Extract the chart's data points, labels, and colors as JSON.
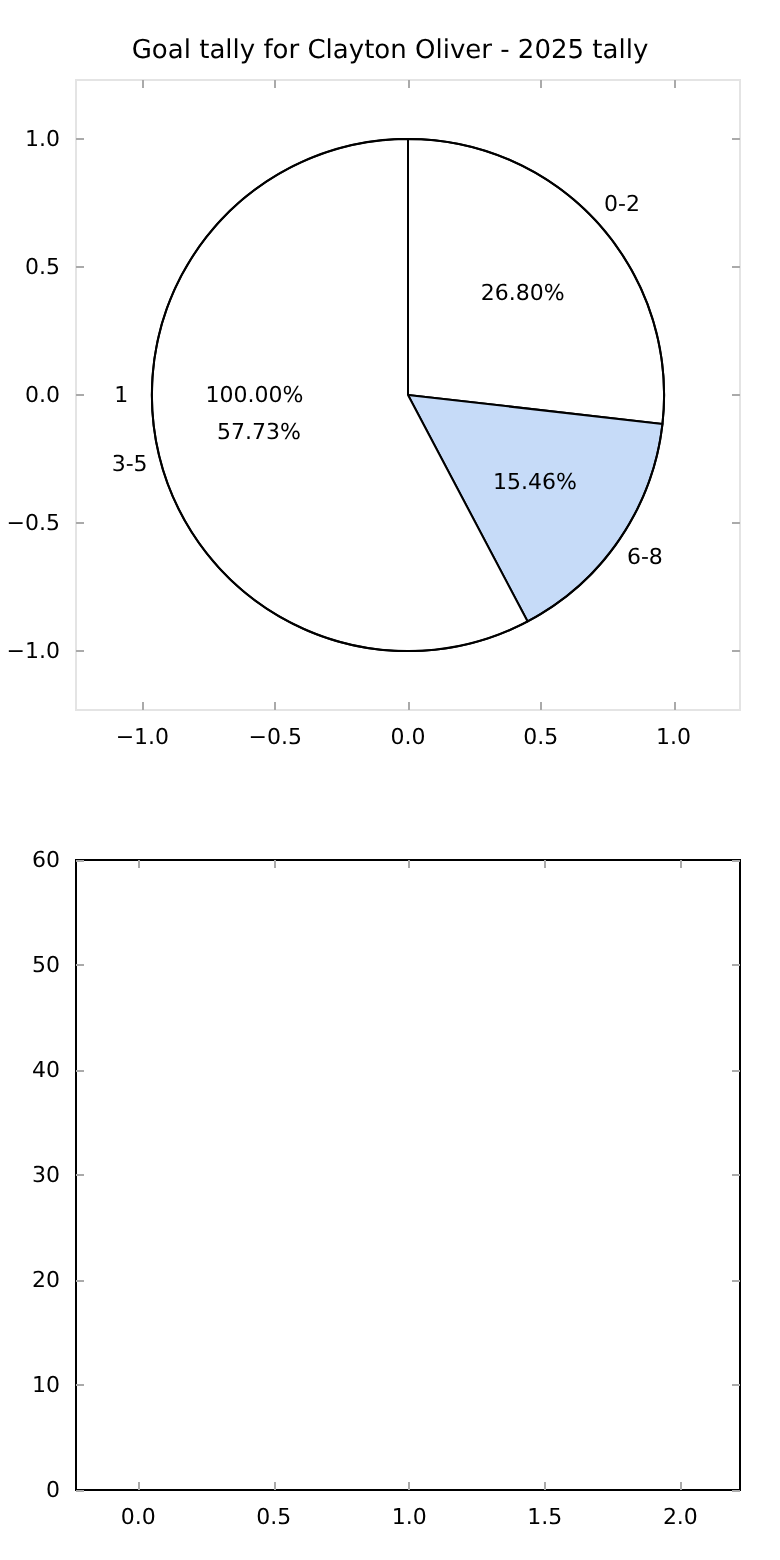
{
  "chart_data": [
    {
      "type": "scatter",
      "title": "Goal tally for Clayton Oliver - 2025 tally",
      "xlim": [
        -1.25,
        1.25
      ],
      "xticks": [
        {
          "value": -1,
          "label": "−1.0"
        },
        {
          "value": -0.5,
          "label": "−0.5"
        },
        {
          "value": 0,
          "label": "0.0"
        },
        {
          "value": 0.5,
          "label": "0.5"
        },
        {
          "value": 1,
          "label": "1.0"
        }
      ],
      "ylim": [
        -1.23,
        1.23
      ],
      "yticks": [
        {
          "value": -1,
          "label": "−1.0"
        },
        {
          "value": -0.5,
          "label": "−0.5"
        },
        {
          "value": 0,
          "label": "0.0"
        },
        {
          "value": 0.5,
          "label": "0.5"
        },
        {
          "value": 1,
          "label": "1.0"
        }
      ]
    },
    {
      "type": "pie",
      "categories": [
        "1"
      ],
      "values": [
        100
      ],
      "colors": [
        "#ffffff"
      ],
      "value_labels": [
        "100.00%"
      ]
    },
    {
      "type": "pie",
      "categories": [
        "0-2",
        "6-8",
        "3-5"
      ],
      "values": [
        26.8,
        15.46,
        57.73
      ],
      "colors": [
        "#ffffff",
        "#c6dbf8",
        "#ffffff"
      ],
      "value_labels": [
        "26.80%",
        "15.46%",
        "57.73%"
      ]
    },
    {
      "type": "scatter",
      "xlim": [
        -0.23,
        2.22
      ],
      "xticks": [
        {
          "value": 0,
          "label": "0.0"
        },
        {
          "value": 0.5,
          "label": "0.5"
        },
        {
          "value": 1,
          "label": "1.0"
        },
        {
          "value": 1.5,
          "label": "1.5"
        },
        {
          "value": 2,
          "label": "2.0"
        }
      ],
      "ylim": [
        0,
        60
      ],
      "yticks": [
        0,
        10,
        20,
        30,
        40,
        50,
        60
      ]
    }
  ]
}
